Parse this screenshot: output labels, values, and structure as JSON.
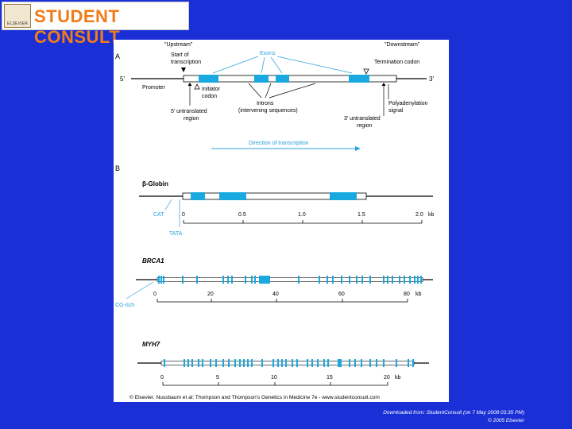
{
  "logo": {
    "brand_text": "STUDENT CONSULT",
    "publisher": "ELSEVIER"
  },
  "panel_a": {
    "label": "A",
    "upstream": "\"Upstream\"",
    "downstream": "\"Downstream\"",
    "five_prime": "5′",
    "three_prime": "3′",
    "start_of_transcription": [
      "Start of",
      "transcription"
    ],
    "exons": "Exons",
    "termination_codon": "Termination codon",
    "promoter": "Promoter",
    "initiator_codon": [
      "Initiator",
      "codon"
    ],
    "introns": [
      "Introns",
      "(intervening sequences)"
    ],
    "five_utr": [
      "5′ untranslated",
      "region"
    ],
    "three_utr": [
      "3′ untranslated",
      "region"
    ],
    "polyadenylation": [
      "Polyadenylation",
      "signal"
    ],
    "direction": "Direction of transcription"
  },
  "panel_b": {
    "label": "B",
    "beta_globin": {
      "title": "β-Globin",
      "cat": "CAT",
      "tata": "TATA",
      "ticks": [
        "0",
        "0.5",
        "1.0",
        "1.5",
        "2.0"
      ],
      "unit": "kb"
    },
    "brca1": {
      "title": "BRCA1",
      "cg_rich": "CG-rich",
      "ticks": [
        "0",
        "20",
        "40",
        "60",
        "80"
      ],
      "unit": "kb"
    },
    "myh7": {
      "title": "MYH7",
      "ticks": [
        "0",
        "5",
        "10",
        "15",
        "20"
      ],
      "unit": "kb"
    }
  },
  "copyright": "© Elsevier. Nussbaum et al: Thompson and Thompson's Genetics in Medicine 7e - www.studentconsult.com",
  "footer": {
    "downloaded": "Downloaded from: StudentConsult (on 7 May 2008 03:35 PM)",
    "copyright": "© 2005 Elsevier"
  },
  "colors": {
    "background": "#1a2fd6",
    "exon": "#19a8e0",
    "accent_label": "#2aa0dc",
    "line": "#000000"
  }
}
